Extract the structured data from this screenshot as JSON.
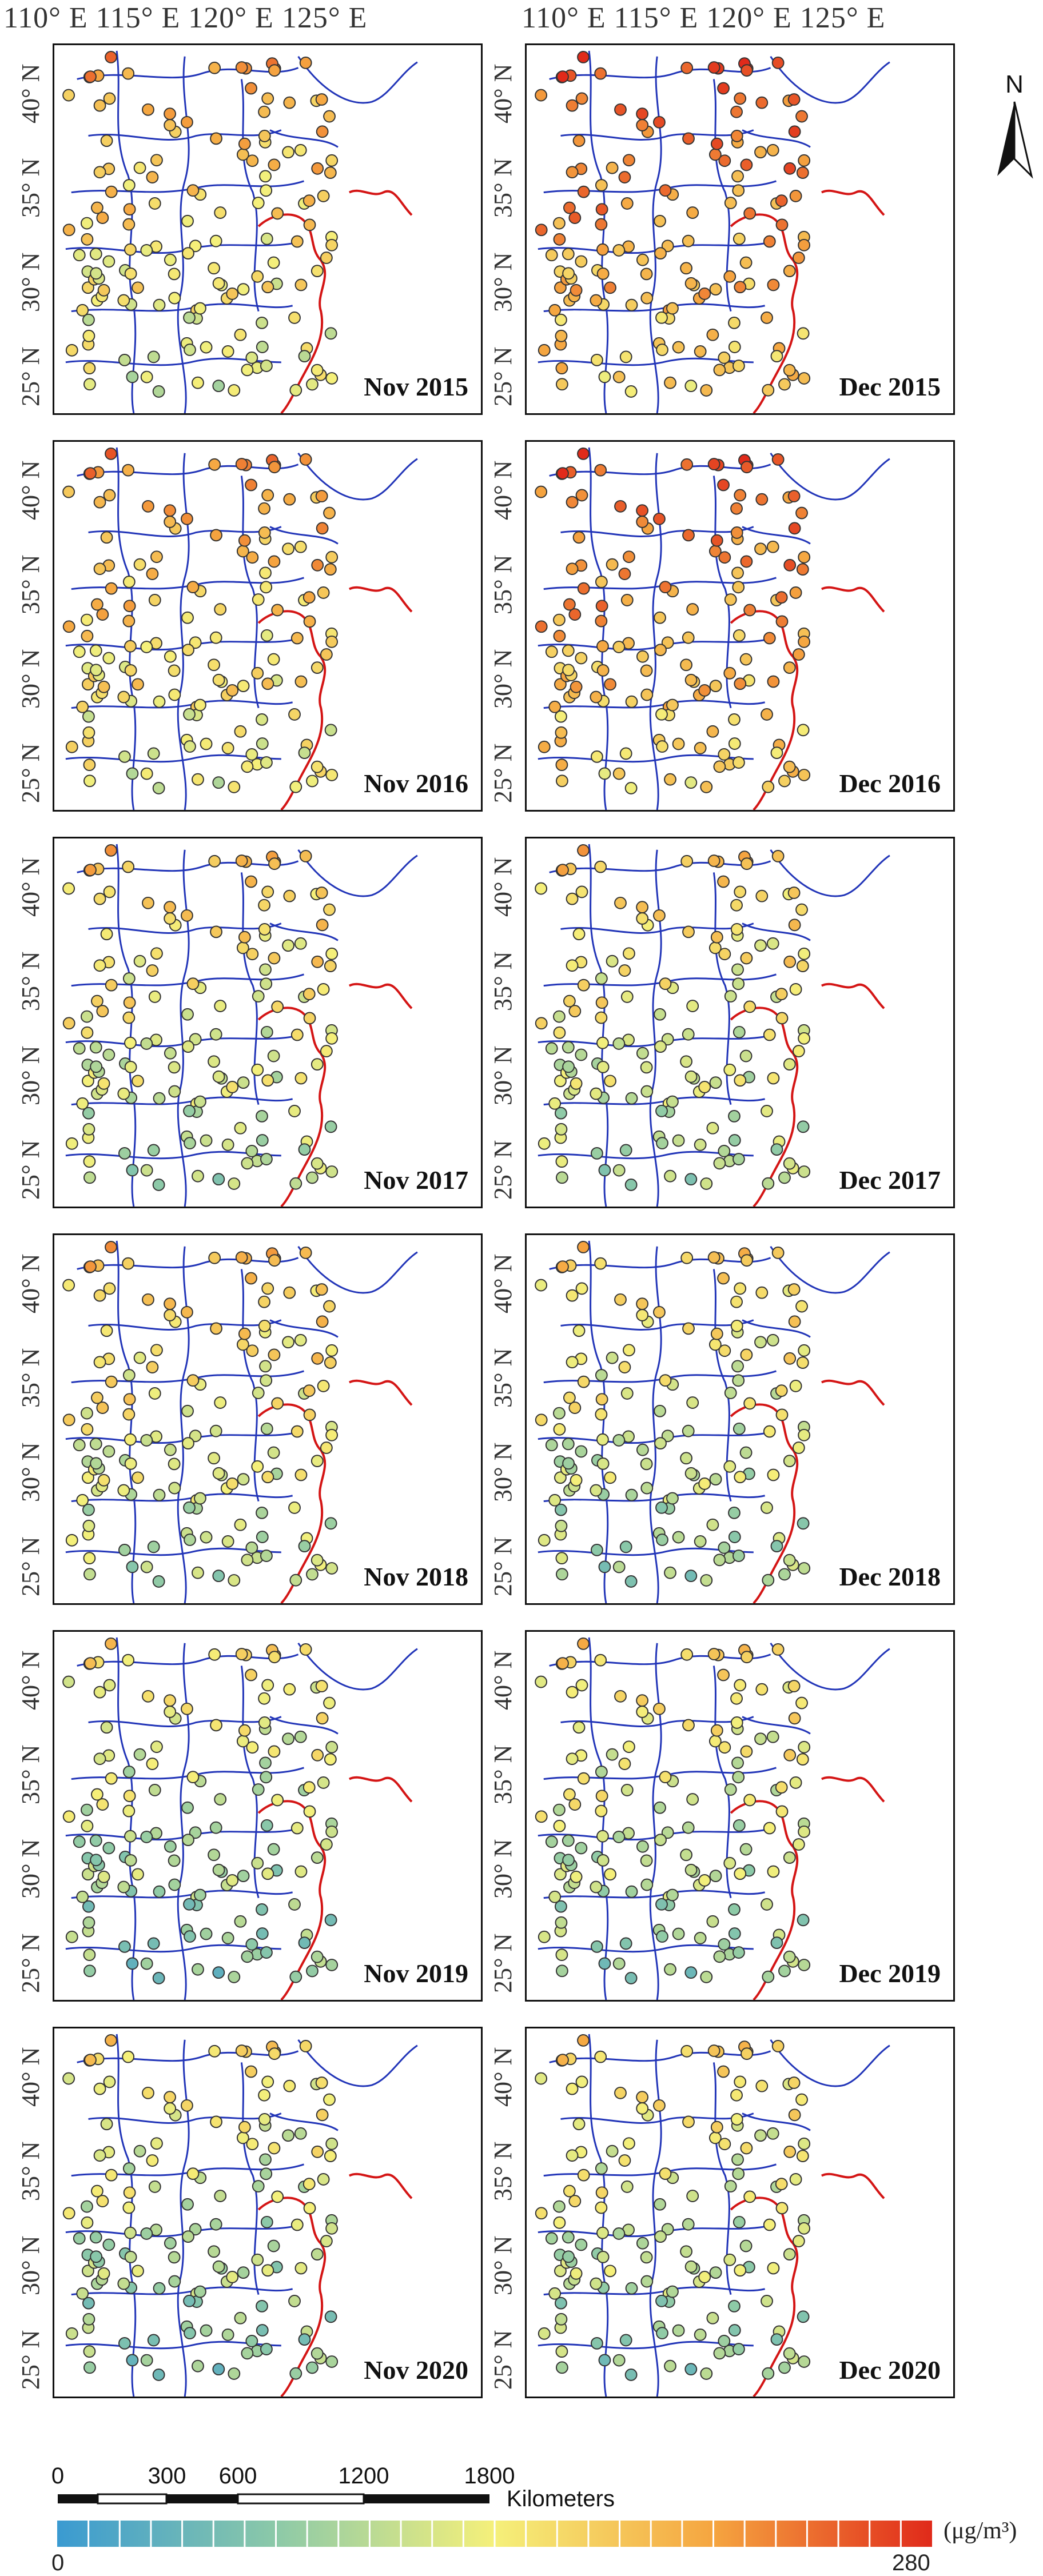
{
  "lon_labels_left": "110° E 115° E 120° E 125° E",
  "lon_labels_right": "110° E 115° E 120° E 125° E",
  "lat_labels": [
    "40° N",
    "35° N",
    "30° N",
    "25° N"
  ],
  "panels": [
    {
      "label": "Nov 2015",
      "level": 0.55
    },
    {
      "label": "Dec 2015",
      "level": 0.72
    },
    {
      "label": "Nov 2016",
      "level": 0.58
    },
    {
      "label": "Dec 2016",
      "level": 0.7
    },
    {
      "label": "Nov 2017",
      "level": 0.46
    },
    {
      "label": "Dec 2017",
      "level": 0.45
    },
    {
      "label": "Nov 2018",
      "level": 0.47
    },
    {
      "label": "Dec 2018",
      "level": 0.42
    },
    {
      "label": "Nov 2019",
      "level": 0.36
    },
    {
      "label": "Dec 2019",
      "level": 0.4
    },
    {
      "label": "Nov 2020",
      "level": 0.37
    },
    {
      "label": "Dec 2020",
      "level": 0.4
    }
  ],
  "north_arrow": {
    "label": "N",
    "icon": "north-arrow-icon"
  },
  "scale_bar": {
    "ticks": [
      "0",
      "300",
      "600",
      "1200",
      "1800"
    ],
    "unit": "Kilometers"
  },
  "legend": {
    "min": "0",
    "max": "280",
    "unit": "(μg/m³)",
    "colors": [
      "#3a9ad1",
      "#8cc9a8",
      "#f5f07a",
      "#f5a540",
      "#e02a1a"
    ]
  },
  "colors": {
    "province_border": "#2235b8",
    "coast": "#d41515",
    "frame": "#111111"
  }
}
